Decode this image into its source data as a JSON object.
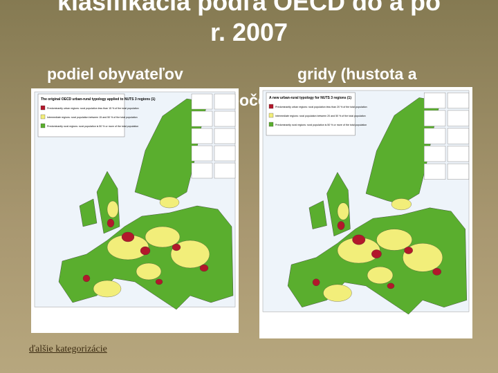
{
  "title": {
    "line1": "klasifikácia podľa OECD do a po",
    "line2": "r. 2007"
  },
  "subtitle": {
    "left": "podiel obyvateľov",
    "right": "gridy (hustota a",
    "hidden": "poče"
  },
  "maps": [
    {
      "title": "The original OECD urban-rural typology applied to NUTS 3 regions (1)",
      "legend": [
        "Predominantly urban regions: rural population less than 15 % of the total population",
        "Intermediate regions: rural population between 15 and 50 % of the total population",
        "Predominantly rural regions: rural population is 50 % or more of the total population"
      ]
    },
    {
      "title": "A new urban-rural typology for NUTS 3 regions (1)",
      "legend": [
        "Predominantly urban regions: rural population less than 20 % of the total population",
        "Intermediate regions: rural population between 20 and 50 % of the total population",
        "Predominantly rural regions: rural population is 50 % or more of the total population"
      ]
    }
  ],
  "link": "ďalšie kategorizácie"
}
